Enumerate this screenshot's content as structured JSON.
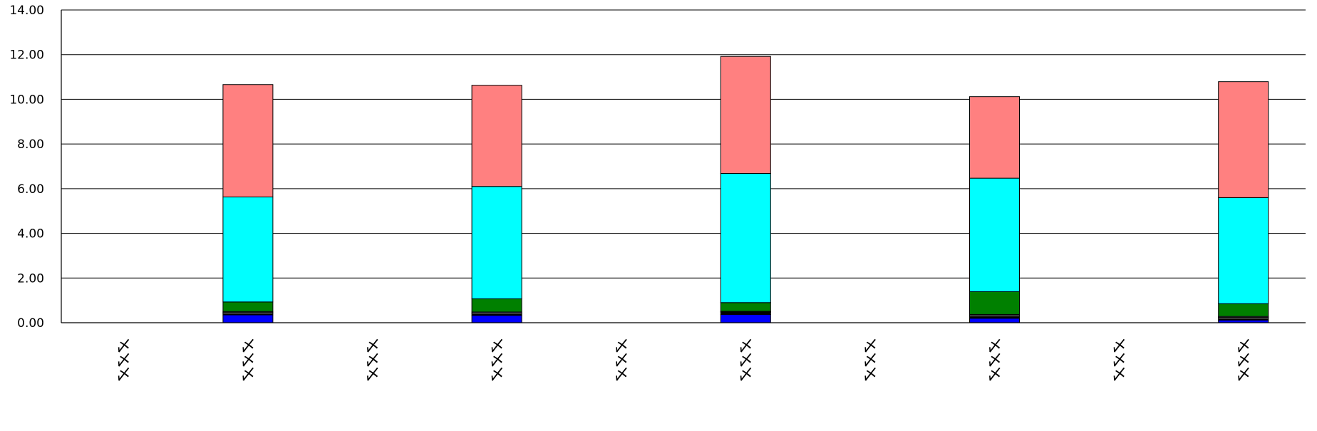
{
  "chart_data": {
    "type": "bar",
    "stacked": true,
    "categories": [
      "〆〆〆",
      "〆〆〆",
      "〆〆〆",
      "〆〆〆",
      "〆〆〆",
      "〆〆〆",
      "〆〆〆",
      "〆〆〆",
      "〆〆〆",
      "〆〆〆"
    ],
    "series": [
      {
        "color": "#0000FF",
        "values": [
          0,
          0.35,
          0,
          0.33,
          0,
          0.37,
          0,
          0.2,
          0,
          0.12
        ]
      },
      {
        "color": "#000000",
        "values": [
          0,
          0.06,
          0,
          0.06,
          0,
          0.1,
          0,
          0.08,
          0,
          0.07
        ]
      },
      {
        "color": "#FFFFFF",
        "values": [
          0,
          0.05,
          0,
          0.05,
          0,
          0.02,
          0,
          0.05,
          0,
          0.05
        ]
      },
      {
        "color": "#8080C0",
        "values": [
          0,
          0.04,
          0,
          0.04,
          0,
          0.02,
          0,
          0.04,
          0,
          0.04
        ]
      },
      {
        "color": "#008000",
        "values": [
          0,
          0.43,
          0,
          0.59,
          0,
          0.39,
          0,
          1.02,
          0,
          0.57
        ]
      },
      {
        "color": "#00FFFF",
        "values": [
          0,
          4.7,
          0,
          5.03,
          0,
          5.78,
          0,
          5.08,
          0,
          4.75
        ]
      },
      {
        "color": "#FF8080",
        "values": [
          0,
          5.03,
          0,
          4.53,
          0,
          5.24,
          0,
          3.65,
          0,
          5.19
        ]
      }
    ],
    "yticks": [
      "0.00",
      "2.00",
      "4.00",
      "6.00",
      "8.00",
      "10.00",
      "12.00",
      "14.00"
    ],
    "ylim": [
      0,
      14
    ],
    "grid": true,
    "legend": "none",
    "title": "",
    "xlabel": "",
    "ylabel": ""
  }
}
